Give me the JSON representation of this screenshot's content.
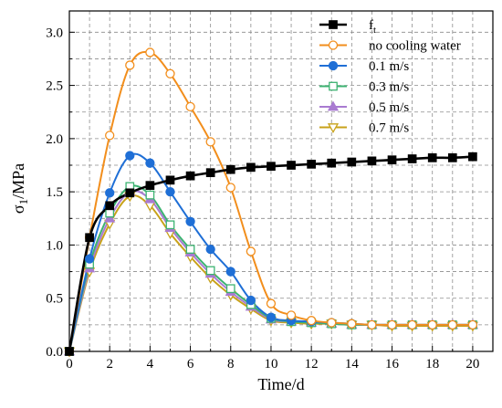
{
  "chart_data": {
    "type": "line",
    "title": "",
    "xlabel": "Time/d",
    "ylabel_main": "σ",
    "ylabel_sub": "1",
    "ylabel_unit": "/MPa",
    "xlim": [
      0,
      21
    ],
    "ylim": [
      0,
      3.2
    ],
    "xticks": [
      0,
      2,
      4,
      6,
      8,
      10,
      12,
      14,
      16,
      18,
      20
    ],
    "yticks": [
      0.0,
      0.5,
      1.0,
      1.5,
      2.0,
      2.5,
      3.0
    ],
    "ytick_labels": [
      "0.0",
      "0.5",
      "1.0",
      "1.5",
      "2.0",
      "2.5",
      "3.0"
    ],
    "grid": true,
    "legend_position": "top-right",
    "series": [
      {
        "name": "f",
        "name_sub": "t",
        "color": "#000000",
        "marker": "square-filled",
        "x": [
          0,
          1,
          2,
          3,
          4,
          5,
          6,
          7,
          8,
          9,
          10,
          11,
          12,
          13,
          14,
          15,
          16,
          17,
          18,
          19,
          20
        ],
        "values": [
          0,
          1.07,
          1.37,
          1.49,
          1.56,
          1.61,
          1.65,
          1.68,
          1.71,
          1.73,
          1.74,
          1.75,
          1.76,
          1.77,
          1.78,
          1.79,
          1.8,
          1.81,
          1.82,
          1.82,
          1.83
        ]
      },
      {
        "name": "no cooling water",
        "color": "#f28e1c",
        "marker": "circle-open",
        "x": [
          0,
          1,
          2,
          3,
          4,
          5,
          6,
          7,
          8,
          9,
          10,
          11,
          12,
          13,
          14,
          15,
          16,
          17,
          18,
          19,
          20
        ],
        "values": [
          0,
          1.07,
          2.03,
          2.69,
          2.81,
          2.61,
          2.3,
          1.97,
          1.54,
          0.94,
          0.45,
          0.34,
          0.29,
          0.27,
          0.26,
          0.25,
          0.25,
          0.25,
          0.25,
          0.25,
          0.25
        ]
      },
      {
        "name": "0.1 m/s",
        "color": "#1f6fd6",
        "marker": "circle-filled",
        "x": [
          0,
          1,
          2,
          3,
          4,
          5,
          6,
          7,
          8,
          9,
          10,
          11,
          12,
          13,
          14,
          15,
          16,
          17,
          18,
          19,
          20
        ],
        "values": [
          0,
          0.87,
          1.49,
          1.84,
          1.77,
          1.5,
          1.22,
          0.96,
          0.75,
          0.48,
          0.32,
          0.29,
          0.28,
          0.27,
          0.26,
          0.25,
          0.25,
          0.25,
          0.25,
          0.25,
          0.25
        ]
      },
      {
        "name": "0.3 m/s",
        "color": "#3cb371",
        "marker": "square-open",
        "x": [
          0,
          1,
          2,
          3,
          4,
          5,
          6,
          7,
          8,
          9,
          10,
          11,
          12,
          13,
          14,
          15,
          16,
          17,
          18,
          19,
          20
        ],
        "values": [
          0,
          0.82,
          1.3,
          1.55,
          1.47,
          1.19,
          0.96,
          0.76,
          0.59,
          0.44,
          0.31,
          0.28,
          0.27,
          0.26,
          0.25,
          0.25,
          0.25,
          0.25,
          0.25,
          0.25,
          0.25
        ]
      },
      {
        "name": "0.5 m/s",
        "color": "#a97bd1",
        "marker": "triangle-up-filled",
        "x": [
          0,
          1,
          2,
          3,
          4,
          5,
          6,
          7,
          8,
          9,
          10,
          11,
          12,
          13,
          14,
          15,
          16,
          17,
          18,
          19,
          20
        ],
        "values": [
          0,
          0.78,
          1.25,
          1.5,
          1.43,
          1.16,
          0.93,
          0.73,
          0.56,
          0.42,
          0.3,
          0.28,
          0.27,
          0.26,
          0.25,
          0.25,
          0.25,
          0.25,
          0.25,
          0.25,
          0.25
        ]
      },
      {
        "name": "0.7 m/s",
        "color": "#c8a21a",
        "marker": "triangle-down-open",
        "x": [
          0,
          1,
          2,
          3,
          4,
          5,
          6,
          7,
          8,
          9,
          10,
          11,
          12,
          13,
          14,
          15,
          16,
          17,
          18,
          19,
          20
        ],
        "values": [
          0,
          0.75,
          1.2,
          1.46,
          1.37,
          1.11,
          0.89,
          0.69,
          0.53,
          0.4,
          0.29,
          0.27,
          0.26,
          0.26,
          0.25,
          0.25,
          0.24,
          0.24,
          0.24,
          0.24,
          0.24
        ]
      }
    ]
  }
}
